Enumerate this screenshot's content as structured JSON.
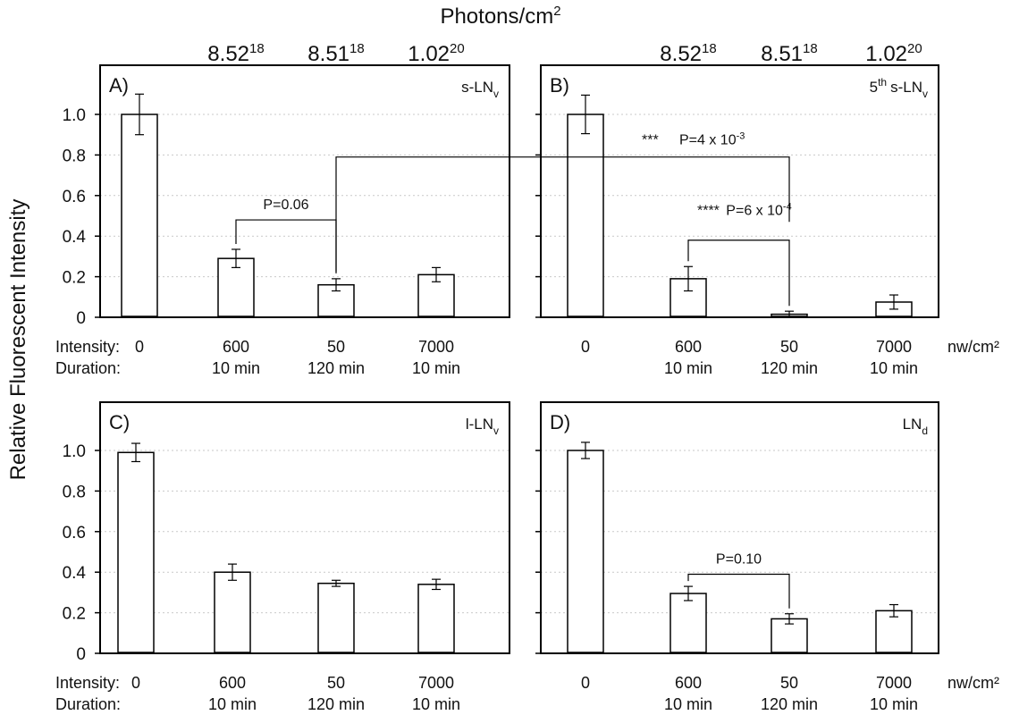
{
  "figure": {
    "top_title": "Photons/cm",
    "top_title_sup": "2",
    "y_axis_label": "Relative Fluorescent Intensity",
    "units_label": "nw/cm²",
    "intensity_label": "Intensity:",
    "duration_label": "Duration:"
  },
  "chart_data": [
    {
      "type": "bar",
      "panel": "A)",
      "name": "s-LN",
      "name_sub": "v",
      "name_sup": "",
      "categories": [
        "0",
        "600 nw/cm², 10 min",
        "50 nw/cm², 120 min",
        "7000 nw/cm², 10 min"
      ],
      "intensity": [
        "0",
        "600",
        "50",
        "7000"
      ],
      "duration": [
        "",
        "10 min",
        "120 min",
        "10 min"
      ],
      "photons": [
        {
          "mantissa": "",
          "exp": ""
        },
        {
          "mantissa": "8.52",
          "exp": "18"
        },
        {
          "mantissa": "8.51",
          "exp": "18"
        },
        {
          "mantissa": "1.02",
          "exp": "20"
        }
      ],
      "values": [
        1.0,
        0.29,
        0.16,
        0.21
      ],
      "errors": [
        0.1,
        0.045,
        0.03,
        0.035
      ],
      "ylim": [
        0,
        1.0
      ],
      "yticks": [
        "0",
        "0.2",
        "0.4",
        "0.6",
        "0.8",
        "1.0"
      ],
      "grid": true,
      "brackets": [
        {
          "from": 1,
          "to": 2,
          "level": 0.48,
          "label": "P=0.06",
          "label_sup": "",
          "stars": ""
        }
      ]
    },
    {
      "type": "bar",
      "panel": "B)",
      "name": "s-LN",
      "name_sub": "v",
      "name_sup": "th",
      "name_prefix": "5",
      "categories": [
        "0",
        "600 nw/cm², 10 min",
        "50 nw/cm², 120 min",
        "7000 nw/cm², 10 min"
      ],
      "intensity": [
        "0",
        "600",
        "50",
        "7000"
      ],
      "duration": [
        "",
        "10 min",
        "120 min",
        "10 min"
      ],
      "photons": [
        {
          "mantissa": "",
          "exp": ""
        },
        {
          "mantissa": "8.52",
          "exp": "18"
        },
        {
          "mantissa": "8.51",
          "exp": "18"
        },
        {
          "mantissa": "1.02",
          "exp": "20"
        }
      ],
      "values": [
        1.0,
        0.19,
        0.015,
        0.075
      ],
      "errors": [
        0.095,
        0.06,
        0.015,
        0.035
      ],
      "ylim": [
        0,
        1.0
      ],
      "yticks": [],
      "grid": true,
      "brackets": [
        {
          "from": 1,
          "to": 2,
          "level": 0.38,
          "label": "P=6 x 10",
          "label_sup": "-4",
          "stars": "****"
        }
      ]
    },
    {
      "type": "bar",
      "panel": "C)",
      "name": "l-LN",
      "name_sub": "v",
      "name_sup": "",
      "categories": [
        "0",
        "600 nw/cm², 10 min",
        "50 nw/cm², 120 min",
        "7000 nw/cm², 10 min"
      ],
      "intensity": [
        "0",
        "600",
        "50",
        "7000"
      ],
      "duration": [
        "",
        "10 min",
        "120 min",
        "10 min"
      ],
      "photons": [],
      "values": [
        0.99,
        0.4,
        0.345,
        0.34
      ],
      "errors": [
        0.045,
        0.04,
        0.015,
        0.025
      ],
      "ylim": [
        0,
        1.0
      ],
      "yticks": [
        "0",
        "0.2",
        "0.4",
        "0.6",
        "0.8",
        "1.0"
      ],
      "grid": true,
      "brackets": []
    },
    {
      "type": "bar",
      "panel": "D)",
      "name": "LN",
      "name_sub": "d",
      "name_sup": "",
      "categories": [
        "0",
        "600 nw/cm², 10 min",
        "50 nw/cm², 120 min",
        "7000 nw/cm², 10 min"
      ],
      "intensity": [
        "0",
        "600",
        "50",
        "7000"
      ],
      "duration": [
        "",
        "10 min",
        "120 min",
        "10 min"
      ],
      "photons": [],
      "values": [
        1.0,
        0.295,
        0.17,
        0.21
      ],
      "errors": [
        0.04,
        0.035,
        0.025,
        0.03
      ],
      "ylim": [
        0,
        1.0
      ],
      "yticks": [],
      "grid": true,
      "brackets": [
        {
          "from": 1,
          "to": 2,
          "level": 0.39,
          "label": "P=0.10",
          "label_sup": "",
          "stars": ""
        }
      ]
    }
  ],
  "cross_panel_comparison": {
    "from_panel": "A)",
    "from_bar": 2,
    "to_panel": "B)",
    "to_bar": 2,
    "level": 0.79,
    "stars": "***",
    "label": "P=4 x 10",
    "label_sup": "-3"
  }
}
